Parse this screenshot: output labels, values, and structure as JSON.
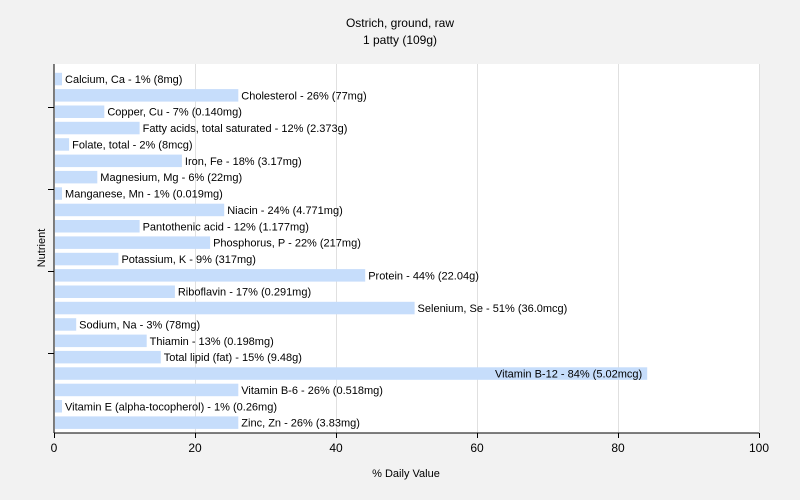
{
  "chart_data": {
    "type": "bar",
    "orientation": "horizontal",
    "title": "Ostrich, ground, raw",
    "subtitle": "1 patty (109g)",
    "xlabel": "% Daily Value",
    "ylabel": "Nutrient",
    "xlim": [
      0,
      100
    ],
    "xticks": [
      0,
      20,
      40,
      60,
      80,
      100
    ],
    "grid": true,
    "bar_color": "#c6ddfb",
    "categories": [
      "Calcium, Ca",
      "Cholesterol",
      "Copper, Cu",
      "Fatty acids, total saturated",
      "Folate, total",
      "Iron, Fe",
      "Magnesium, Mg",
      "Manganese, Mn",
      "Niacin",
      "Pantothenic acid",
      "Phosphorus, P",
      "Potassium, K",
      "Protein",
      "Riboflavin",
      "Selenium, Se",
      "Sodium, Na",
      "Thiamin",
      "Total lipid (fat)",
      "Vitamin B-12",
      "Vitamin B-6",
      "Vitamin E (alpha-tocopherol)",
      "Zinc, Zn"
    ],
    "values": [
      1,
      26,
      7,
      12,
      2,
      18,
      6,
      1,
      24,
      12,
      22,
      9,
      44,
      17,
      51,
      3,
      13,
      15,
      84,
      26,
      1,
      26
    ],
    "labels": [
      "Calcium, Ca - 1% (8mg)",
      "Cholesterol - 26% (77mg)",
      "Copper, Cu - 7% (0.140mg)",
      "Fatty acids, total saturated - 12% (2.373g)",
      "Folate, total - 2% (8mcg)",
      "Iron, Fe - 18% (3.17mg)",
      "Magnesium, Mg - 6% (22mg)",
      "Manganese, Mn - 1% (0.019mg)",
      "Niacin - 24% (4.771mg)",
      "Pantothenic acid - 12% (1.177mg)",
      "Phosphorus, P - 22% (217mg)",
      "Potassium, K - 9% (317mg)",
      "Protein - 44% (22.04g)",
      "Riboflavin - 17% (0.291mg)",
      "Selenium, Se - 51% (36.0mcg)",
      "Sodium, Na - 3% (78mg)",
      "Thiamin - 13% (0.198mg)",
      "Total lipid (fat) - 15% (9.48g)",
      "Vitamin B-12 - 84% (5.02mcg)",
      "Vitamin B-6 - 26% (0.518mg)",
      "Vitamin E (alpha-tocopherol) - 1% (0.26mg)",
      "Zinc, Zn - 26% (3.83mg)"
    ]
  }
}
